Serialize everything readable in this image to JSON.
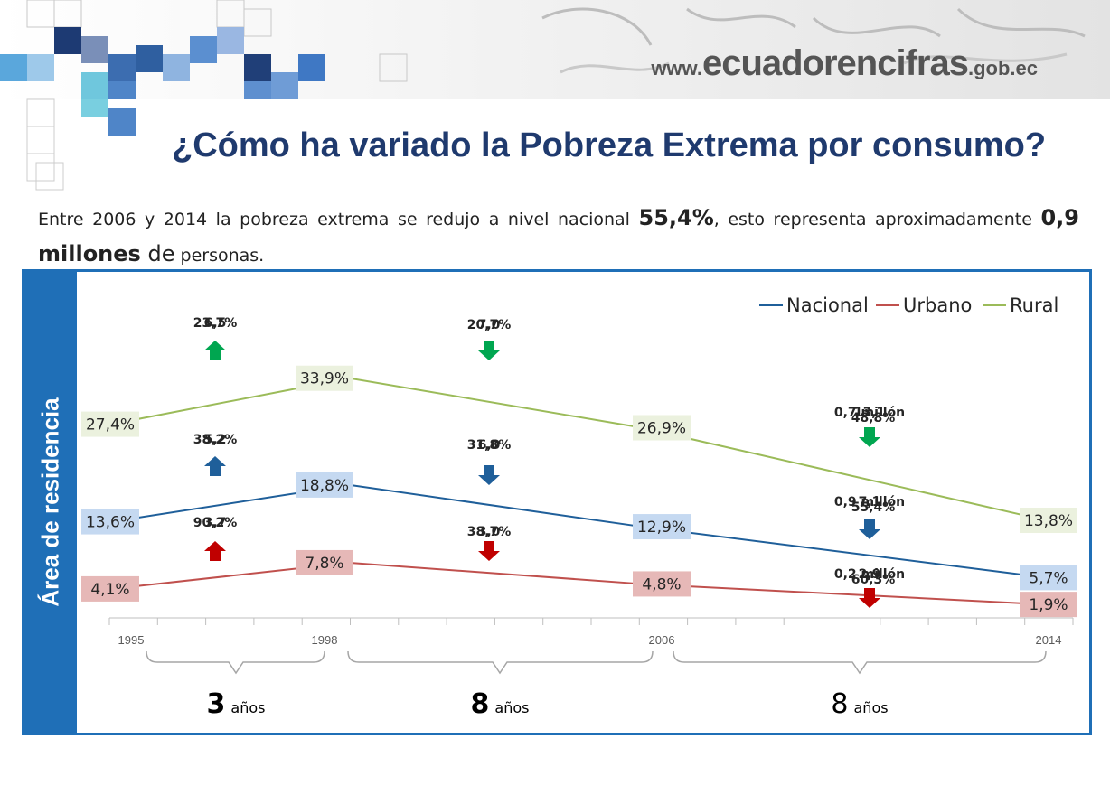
{
  "header": {
    "site_prefix": "www.",
    "site_domain": "ecuadorencifras",
    "site_suffix": ".gob.ec"
  },
  "title": "¿Cómo ha variado la Pobreza Extrema por consumo?",
  "intro": {
    "part1": "Entre 2006 y 2014 la pobreza extrema se redujo a nivel nacional ",
    "bold1": "55,4%",
    "part2": ", esto representa aproximadamente ",
    "bold2": "0,9 millones",
    "part3": " de",
    "part4": " personas."
  },
  "sidebar_label": "Área de residencia",
  "colors": {
    "nacional": "#1f5f9a",
    "urbano": "#c0504d",
    "rural": "#9bbb59",
    "nacional_label_bg": "#c5d9f1",
    "urbano_label_bg": "#e6b8b7",
    "rural_label_bg": "#ebf1de",
    "up_arrow_green": "#00a650",
    "down_arrow_green": "#00a650",
    "blue_arrow": "#1f5f9a",
    "red_arrow": "#c00000"
  },
  "chart_data": {
    "type": "line",
    "x": [
      1995,
      1998,
      2006,
      2014
    ],
    "xticks": [
      "1995",
      "1998",
      "2006",
      "2014"
    ],
    "ylim": [
      0,
      40
    ],
    "legend_position": "top-right",
    "series": [
      {
        "name": "Nacional",
        "values": [
          13.6,
          18.8,
          12.9,
          5.7
        ],
        "labels": [
          "13,6%",
          "18,8%",
          "12,9%",
          "5,7%"
        ]
      },
      {
        "name": "Urbano",
        "values": [
          4.1,
          7.8,
          4.8,
          1.9
        ],
        "labels": [
          "4,1%",
          "7,8%",
          "4,8%",
          "1,9%"
        ]
      },
      {
        "name": "Rural",
        "values": [
          27.4,
          33.9,
          26.9,
          13.8
        ],
        "labels": [
          "27,4%",
          "33,9%",
          "26,9%",
          "13,8%"
        ]
      }
    ],
    "annotations": [
      {
        "series": "Rural",
        "period": "1995-1998",
        "direction": "up",
        "text_a": "6,5",
        "text_b": "23,7%"
      },
      {
        "series": "Rural",
        "period": "1998-2006",
        "direction": "down",
        "text_a": "7,0",
        "text_b": "20,7%"
      },
      {
        "series": "Rural",
        "period": "2006-2014",
        "direction": "down",
        "text_a": "0,7 millón",
        "text_b": "13,1",
        "text_c": "48,8%"
      },
      {
        "series": "Nacional",
        "period": "1995-1998",
        "direction": "up",
        "text_a": "5,2",
        "text_b": "38,2%"
      },
      {
        "series": "Nacional",
        "period": "1998-2006",
        "direction": "down",
        "text_a": "6,0",
        "text_b": "31,8%"
      },
      {
        "series": "Nacional",
        "period": "2006-2014",
        "direction": "down",
        "text_a": "0,9  millón",
        "text_b": "7,1",
        "text_c": "55,4%"
      },
      {
        "series": "Urbano",
        "period": "1995-1998",
        "direction": "up",
        "text_a": "3,7",
        "text_b": "90,2%"
      },
      {
        "series": "Urbano",
        "period": "1998-2006",
        "direction": "down",
        "text_a": "3,0",
        "text_b": "38,7%"
      },
      {
        "series": "Urbano",
        "period": "2006-2014",
        "direction": "down",
        "text_a": "0,2  millón",
        "text_b": "2,9",
        "text_c": "60,3%"
      }
    ],
    "periods": [
      {
        "number": "3",
        "unit": "años"
      },
      {
        "number": "8",
        "unit": "años"
      },
      {
        "number": "8",
        "unit": "años"
      }
    ]
  }
}
